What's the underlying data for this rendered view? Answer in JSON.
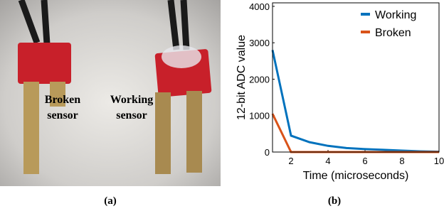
{
  "photo": {
    "left_label": [
      "Broken",
      "sensor"
    ],
    "right_label": [
      "Working",
      "sensor"
    ]
  },
  "captions": [
    "(a)",
    "(b)"
  ],
  "chart_data": {
    "type": "line",
    "xlabel": "Time (microseconds)",
    "ylabel": "12-bit ADC value",
    "x": [
      1,
      2,
      3,
      4,
      5,
      6,
      7,
      8,
      9,
      10
    ],
    "series": [
      {
        "name": "Working",
        "color": "#0072bd",
        "values": [
          2800,
          450,
          270,
          170,
          110,
          80,
          60,
          40,
          20,
          10
        ]
      },
      {
        "name": "Broken",
        "color": "#d95319",
        "values": [
          1050,
          0,
          0,
          0,
          0,
          0,
          0,
          0,
          0,
          0
        ]
      }
    ],
    "xlim": [
      1,
      10
    ],
    "xticks": [
      2,
      4,
      6,
      8,
      10
    ],
    "ylim": [
      0,
      4096
    ],
    "yticks": [
      0,
      1000,
      2000,
      3000,
      4000
    ],
    "legend": "top-right"
  }
}
